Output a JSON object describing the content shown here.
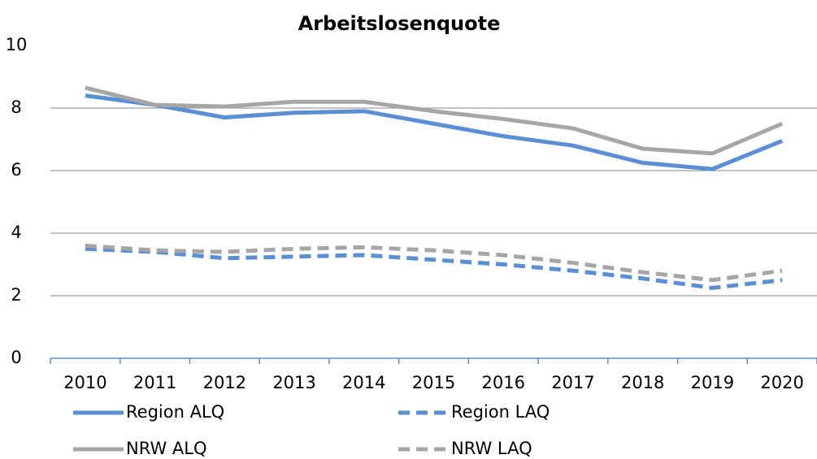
{
  "chart_data": {
    "type": "line",
    "title": "Arbeitslosenquote",
    "categories": [
      "2010",
      "2011",
      "2012",
      "2013",
      "2014",
      "2015",
      "2016",
      "2017",
      "2018",
      "2019",
      "2020"
    ],
    "series": [
      {
        "name": "Region ALQ",
        "color": "#5a8ed5",
        "dashed": false,
        "values": [
          8.4,
          8.1,
          7.7,
          7.85,
          7.9,
          7.5,
          7.1,
          6.8,
          6.25,
          6.05,
          6.95
        ]
      },
      {
        "name": "Region LAQ",
        "color": "#5a8ed5",
        "dashed": true,
        "values": [
          3.5,
          3.4,
          3.2,
          3.25,
          3.3,
          3.15,
          3.0,
          2.8,
          2.55,
          2.25,
          2.5
        ]
      },
      {
        "name": "NRW ALQ",
        "color": "#a6a6a6",
        "dashed": false,
        "values": [
          8.65,
          8.1,
          8.05,
          8.2,
          8.2,
          7.9,
          7.65,
          7.35,
          6.7,
          6.55,
          7.5
        ]
      },
      {
        "name": "NRW LAQ",
        "color": "#a6a6a6",
        "dashed": true,
        "values": [
          3.6,
          3.45,
          3.4,
          3.5,
          3.55,
          3.45,
          3.3,
          3.05,
          2.75,
          2.5,
          2.8
        ]
      }
    ],
    "ylim": [
      0,
      10
    ],
    "yticks": [
      0,
      2,
      4,
      6,
      8,
      10
    ],
    "grid": true,
    "legend": "bottom"
  }
}
